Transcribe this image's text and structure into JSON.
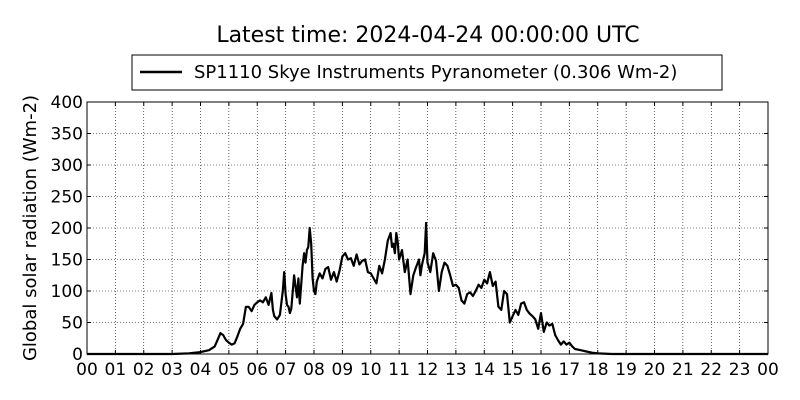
{
  "chart_data": {
    "type": "line",
    "title": "Latest time: 2024-04-24 00:00:00 UTC",
    "xlabel": "",
    "ylabel": "Global solar radiation (Wm-2)",
    "legend": {
      "label": "SP1110 Skye Instruments Pyranometer (0.306 Wm-2)",
      "placement": "top-center, outside plot"
    },
    "grid": true,
    "xlim": [
      0,
      24
    ],
    "ylim": [
      0,
      400
    ],
    "x_ticks": [
      "00",
      "01",
      "02",
      "03",
      "04",
      "05",
      "06",
      "07",
      "08",
      "09",
      "10",
      "11",
      "12",
      "13",
      "14",
      "15",
      "16",
      "17",
      "18",
      "19",
      "20",
      "21",
      "22",
      "23",
      "00"
    ],
    "y_ticks": [
      0,
      50,
      100,
      150,
      200,
      250,
      300,
      350,
      400
    ],
    "series": [
      {
        "name": "SP1110 Skye Instruments Pyranometer (0.306 Wm-2)",
        "color": "#000000",
        "x": [
          0,
          1,
          2,
          3,
          3.6,
          4.0,
          4.3,
          4.5,
          4.6,
          4.7,
          4.8,
          4.9,
          5.0,
          5.1,
          5.2,
          5.3,
          5.4,
          5.5,
          5.6,
          5.7,
          5.8,
          5.9,
          6.0,
          6.1,
          6.2,
          6.3,
          6.4,
          6.5,
          6.55,
          6.6,
          6.7,
          6.8,
          6.9,
          6.95,
          7.0,
          7.05,
          7.1,
          7.15,
          7.2,
          7.3,
          7.4,
          7.45,
          7.5,
          7.55,
          7.6,
          7.65,
          7.7,
          7.75,
          7.8,
          7.85,
          7.9,
          7.95,
          8.0,
          8.05,
          8.1,
          8.2,
          8.3,
          8.4,
          8.5,
          8.6,
          8.7,
          8.8,
          8.9,
          9.0,
          9.1,
          9.2,
          9.3,
          9.4,
          9.5,
          9.6,
          9.7,
          9.8,
          9.9,
          10.0,
          10.1,
          10.2,
          10.3,
          10.4,
          10.5,
          10.6,
          10.7,
          10.75,
          10.8,
          10.85,
          10.9,
          10.95,
          11.0,
          11.1,
          11.2,
          11.3,
          11.4,
          11.5,
          11.6,
          11.7,
          11.75,
          11.8,
          11.85,
          11.9,
          11.95,
          12.0,
          12.1,
          12.2,
          12.3,
          12.4,
          12.5,
          12.6,
          12.7,
          12.8,
          12.9,
          13.0,
          13.1,
          13.2,
          13.3,
          13.4,
          13.5,
          13.6,
          13.7,
          13.8,
          13.9,
          14.0,
          14.1,
          14.2,
          14.3,
          14.4,
          14.5,
          14.6,
          14.7,
          14.8,
          14.9,
          15.0,
          15.1,
          15.2,
          15.3,
          15.4,
          15.5,
          15.6,
          15.7,
          15.8,
          15.9,
          16.0,
          16.1,
          16.2,
          16.3,
          16.4,
          16.5,
          16.6,
          16.7,
          16.8,
          16.9,
          17.0,
          17.1,
          17.2,
          17.4,
          17.6,
          17.8,
          18.0,
          18.5,
          19,
          20,
          21,
          22,
          23,
          24
        ],
        "values": [
          0,
          0,
          0,
          0,
          1,
          3,
          6,
          12,
          22,
          33,
          30,
          22,
          18,
          15,
          17,
          28,
          40,
          48,
          75,
          75,
          68,
          78,
          82,
          85,
          82,
          90,
          78,
          97,
          70,
          60,
          55,
          62,
          100,
          130,
          95,
          78,
          75,
          65,
          72,
          125,
          90,
          120,
          80,
          110,
          140,
          160,
          145,
          165,
          170,
          200,
          175,
          120,
          100,
          95,
          115,
          128,
          120,
          135,
          138,
          118,
          130,
          115,
          132,
          155,
          160,
          150,
          152,
          140,
          158,
          142,
          148,
          150,
          130,
          128,
          120,
          112,
          140,
          128,
          150,
          180,
          192,
          170,
          175,
          160,
          192,
          178,
          150,
          165,
          130,
          150,
          95,
          125,
          138,
          150,
          125,
          140,
          150,
          160,
          208,
          145,
          130,
          160,
          148,
          100,
          130,
          145,
          140,
          125,
          108,
          110,
          105,
          85,
          80,
          95,
          98,
          92,
          100,
          110,
          105,
          118,
          112,
          130,
          108,
          115,
          75,
          70,
          100,
          95,
          50,
          60,
          70,
          62,
          80,
          82,
          70,
          64,
          60,
          55,
          40,
          65,
          35,
          50,
          45,
          48,
          30,
          22,
          15,
          20,
          15,
          18,
          12,
          8,
          6,
          4,
          2,
          1,
          0,
          0,
          0,
          0,
          0,
          0,
          0
        ]
      }
    ]
  }
}
